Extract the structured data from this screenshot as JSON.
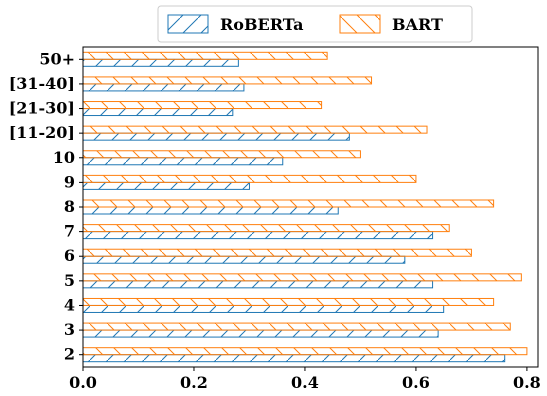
{
  "chart_data": {
    "type": "bar",
    "orientation": "horizontal",
    "categories": [
      "2",
      "3",
      "4",
      "5",
      "6",
      "7",
      "8",
      "9",
      "10",
      "[11-20]",
      "[21-30]",
      "[31-40]",
      "50+"
    ],
    "series": [
      {
        "name": "RoBERTa",
        "color": "#1f77b4",
        "hatch": "/",
        "values": [
          0.76,
          0.64,
          0.65,
          0.63,
          0.58,
          0.63,
          0.46,
          0.3,
          0.36,
          0.48,
          0.27,
          0.29,
          0.28
        ]
      },
      {
        "name": "BART",
        "color": "#ff7f0e",
        "hatch": "\\",
        "values": [
          0.8,
          0.77,
          0.74,
          0.79,
          0.7,
          0.66,
          0.74,
          0.6,
          0.5,
          0.62,
          0.43,
          0.52,
          0.44
        ]
      }
    ],
    "xlim": [
      0,
      0.82
    ],
    "xticks": [
      "0.0",
      "0.2",
      "0.4",
      "0.6",
      "0.8"
    ],
    "xlabel": "",
    "ylabel": "",
    "title": "",
    "legend_position": "top-center",
    "grid": false
  }
}
